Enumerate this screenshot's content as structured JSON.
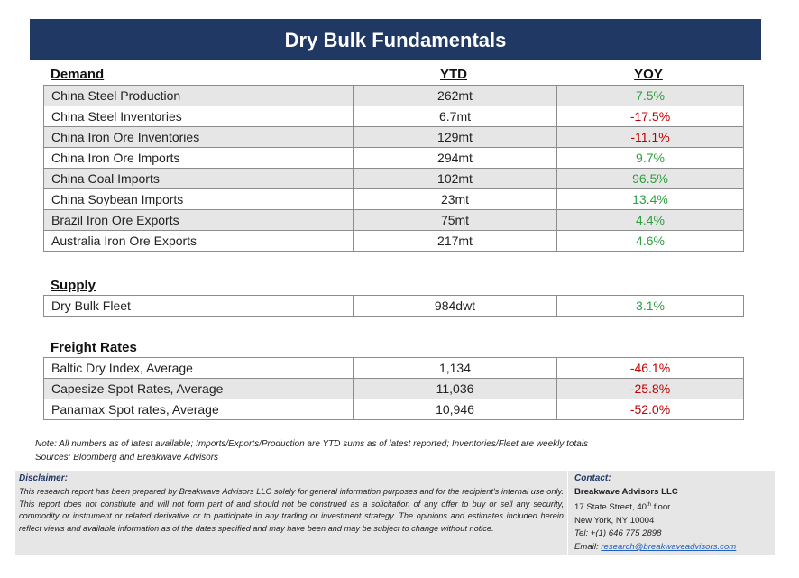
{
  "title": "Dry Bulk Fundamentals",
  "columns": {
    "ytd": "YTD",
    "yoy": "YOY"
  },
  "demand": {
    "heading": "Demand",
    "rows": [
      {
        "name": "China Steel Production",
        "ytd": "262mt",
        "yoy": "7.5%"
      },
      {
        "name": "China Steel Inventories",
        "ytd": "6.7mt",
        "yoy": "-17.5%"
      },
      {
        "name": "China Iron Ore Inventories",
        "ytd": "129mt",
        "yoy": "-11.1%"
      },
      {
        "name": "China Iron Ore Imports",
        "ytd": "294mt",
        "yoy": "9.7%"
      },
      {
        "name": "China Coal Imports",
        "ytd": "102mt",
        "yoy": "96.5%"
      },
      {
        "name": "China Soybean Imports",
        "ytd": "23mt",
        "yoy": "13.4%"
      },
      {
        "name": "Brazil Iron Ore Exports",
        "ytd": "75mt",
        "yoy": "4.4%"
      },
      {
        "name": "Australia Iron Ore Exports",
        "ytd": "217mt",
        "yoy": "4.6%"
      }
    ]
  },
  "supply": {
    "heading": "Supply",
    "rows": [
      {
        "name": "Dry Bulk Fleet",
        "ytd": "984dwt",
        "yoy": "3.1%"
      }
    ]
  },
  "freight": {
    "heading": "Freight Rates",
    "rows": [
      {
        "name": "Baltic Dry Index, Average",
        "ytd": "1,134",
        "yoy": "-46.1%"
      },
      {
        "name": "Capesize Spot Rates, Average",
        "ytd": "11,036",
        "yoy": "-25.8%"
      },
      {
        "name": "Panamax Spot rates, Average",
        "ytd": "10,946",
        "yoy": "-52.0%"
      }
    ]
  },
  "note": {
    "line1": "Note:  All numbers as of latest available; Imports/Exports/Production are YTD sums as of latest reported; Inventories/Fleet are weekly totals",
    "line2": "Sources: Bloomberg and Breakwave Advisors"
  },
  "disclaimer": {
    "heading": "Disclaimer:",
    "text": "This research report has been prepared by Breakwave Advisors LLC solely for general information purposes and for the recipient's internal use only. This report does not constitute and will not form part of and should not be construed as a solicitation of any offer to buy or sell any security, commodity or instrument or related derivative or to participate in any trading or investment strategy. The opinions and estimates included herein reflect views and available information as of the dates specified and may have been and may be subject to change without notice."
  },
  "contact": {
    "heading": "Contact:",
    "firm": "Breakwave Advisors LLC",
    "street_prefix": "17 State Street, 40",
    "street_sup": "th",
    "street_suffix": " floor",
    "city": "New York, NY 10004",
    "tel": "Tel: +(1) 646 775 2898",
    "email_label": "Email: ",
    "email": "research@breakwaveadvisors.com"
  },
  "colors": {
    "header_bg": "#1f3864",
    "positive": "#2e9e3f",
    "negative": "#c00000",
    "shade": "#e7e6e6"
  }
}
